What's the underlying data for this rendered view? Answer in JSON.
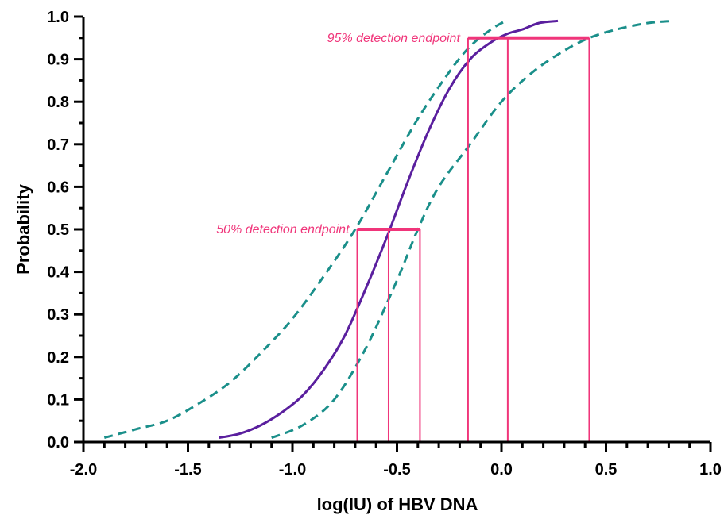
{
  "chart_data": {
    "type": "line",
    "xlabel": "log(IU) of HBV DNA",
    "ylabel": "Probability",
    "xlim": [
      -2.0,
      1.0
    ],
    "ylim": [
      0.0,
      1.0
    ],
    "x_ticks": [
      "-2.0",
      "-1.5",
      "-1.0",
      "-0.5",
      "0.0",
      "0.5",
      "1.0"
    ],
    "y_ticks": [
      "0.0",
      "0.1",
      "0.2",
      "0.3",
      "0.4",
      "0.5",
      "0.6",
      "0.7",
      "0.8",
      "0.9",
      "1.0"
    ],
    "grid": false,
    "colors": {
      "fit": "#5a1f9e",
      "ci": "#1a8f8a",
      "endpoint": "#f0357a",
      "axis": "#000000"
    },
    "series": [
      {
        "style": "solid",
        "x": [
          -1.35,
          -1.25,
          -1.15,
          -1.05,
          -0.95,
          -0.85,
          -0.75,
          -0.65,
          -0.55,
          -0.45,
          -0.35,
          -0.25,
          -0.15,
          -0.05,
          0.03,
          0.1,
          0.18,
          0.27
        ],
        "y": [
          0.01,
          0.02,
          0.04,
          0.07,
          0.11,
          0.17,
          0.25,
          0.36,
          0.48,
          0.61,
          0.73,
          0.83,
          0.9,
          0.94,
          0.96,
          0.97,
          0.985,
          0.99
        ]
      },
      {
        "style": "dashed",
        "x": [
          -1.9,
          -1.75,
          -1.6,
          -1.45,
          -1.3,
          -1.15,
          -1.0,
          -0.85,
          -0.7,
          -0.55,
          -0.4,
          -0.25,
          -0.15,
          -0.05,
          0.02
        ],
        "y": [
          0.01,
          0.03,
          0.05,
          0.09,
          0.14,
          0.21,
          0.29,
          0.39,
          0.5,
          0.63,
          0.76,
          0.87,
          0.93,
          0.97,
          0.99
        ]
      },
      {
        "style": "dashed",
        "x": [
          -1.1,
          -0.95,
          -0.8,
          -0.65,
          -0.5,
          -0.4,
          -0.3,
          -0.15,
          0.0,
          0.15,
          0.3,
          0.42,
          0.55,
          0.7,
          0.82
        ],
        "y": [
          0.01,
          0.04,
          0.1,
          0.22,
          0.38,
          0.5,
          0.6,
          0.7,
          0.8,
          0.87,
          0.92,
          0.95,
          0.97,
          0.985,
          0.99
        ]
      }
    ],
    "endpoints": [
      {
        "label": "50% detection endpoint",
        "y": 0.5,
        "x_low": -0.69,
        "x_mid": -0.54,
        "x_high": -0.39
      },
      {
        "label": "95% detection endpoint",
        "y": 0.95,
        "x_low": -0.16,
        "x_mid": 0.03,
        "x_high": 0.42
      }
    ]
  }
}
